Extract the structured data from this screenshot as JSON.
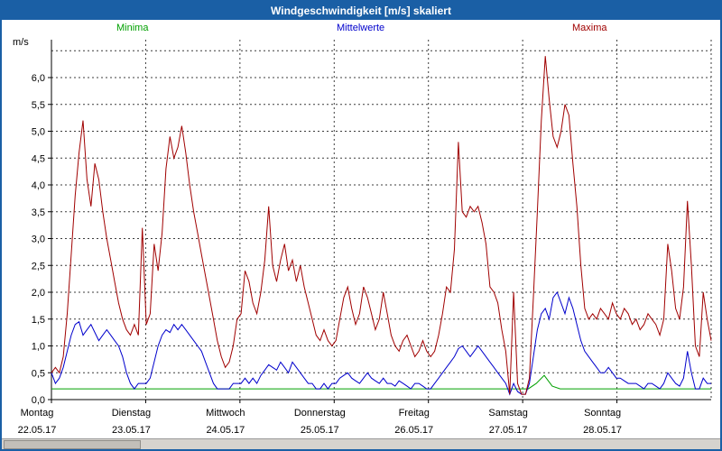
{
  "colors": {
    "titlebar": "#1a5fa5",
    "titlebar_text": "#ffffff",
    "plot_background": "#ffffff",
    "grid": "#3c3c3c"
  },
  "chart_data": {
    "type": "line",
    "title": "Windgeschwindigkeit [m/s] skaliert",
    "y_unit": "m/s",
    "ylabel": "m/s",
    "xlabel": "",
    "ylim": [
      0,
      6.75
    ],
    "y_tick_step": 0.5,
    "y_tick_format": "comma-decimal",
    "grid": "dashed",
    "legend_position": "top",
    "x_days": [
      "Montag",
      "Dienstag",
      "Mittwoch",
      "Donnerstag",
      "Freitag",
      "Samstag",
      "Sonntag"
    ],
    "x_dates": [
      "22.05.17",
      "23.05.17",
      "24.05.17",
      "25.05.17",
      "26.05.17",
      "27.05.17",
      "28.05.17"
    ],
    "series": [
      {
        "name": "Minima",
        "color": "#00a000",
        "values": [
          0.2,
          0.2,
          0.2,
          0.2,
          0.2,
          0.2,
          0.2,
          0.2,
          0.2,
          0.2,
          0.2,
          0.2,
          0.2,
          0.2,
          0.2,
          0.2,
          0.2,
          0.2,
          0.2,
          0.2,
          0.2,
          0.2,
          0.2,
          0.2,
          0.2,
          0.2,
          0.2,
          0.2,
          0.2,
          0.2,
          0.2,
          0.2,
          0.2,
          0.2,
          0.2,
          0.2,
          0.2,
          0.2,
          0.2,
          0.2,
          0.2,
          0.2,
          0.2,
          0.2,
          0.2,
          0.2,
          0.2,
          0.2,
          0.2,
          0.2,
          0.2,
          0.2,
          0.2,
          0.2,
          0.2,
          0.2,
          0.2,
          0.2,
          0.2,
          0.2,
          0.2,
          0.3,
          0.45,
          0.25,
          0.2,
          0.2,
          0.2,
          0.2,
          0.2,
          0.2,
          0.2,
          0.2,
          0.2,
          0.2,
          0.2,
          0.2,
          0.2,
          0.2,
          0.2,
          0.2,
          0.2,
          0.2,
          0.2,
          0.2
        ]
      },
      {
        "name": "Mittelwerte",
        "color": "#0000cc",
        "values": [
          0.5,
          0.3,
          0.4,
          0.6,
          0.9,
          1.2,
          1.4,
          1.45,
          1.2,
          1.3,
          1.4,
          1.25,
          1.1,
          1.2,
          1.3,
          1.2,
          1.1,
          1.0,
          0.8,
          0.5,
          0.3,
          0.2,
          0.3,
          0.3,
          0.3,
          0.4,
          0.7,
          1.0,
          1.2,
          1.3,
          1.25,
          1.4,
          1.3,
          1.4,
          1.3,
          1.2,
          1.1,
          1.0,
          0.9,
          0.7,
          0.5,
          0.3,
          0.2,
          0.2,
          0.2,
          0.2,
          0.3,
          0.3,
          0.3,
          0.4,
          0.3,
          0.4,
          0.3,
          0.45,
          0.55,
          0.65,
          0.6,
          0.55,
          0.7,
          0.6,
          0.5,
          0.7,
          0.6,
          0.5,
          0.4,
          0.3,
          0.3,
          0.2,
          0.2,
          0.3,
          0.2,
          0.3,
          0.3,
          0.4,
          0.45,
          0.5,
          0.4,
          0.35,
          0.3,
          0.4,
          0.5,
          0.4,
          0.35,
          0.3,
          0.4,
          0.3,
          0.3,
          0.25,
          0.35,
          0.3,
          0.25,
          0.2,
          0.3,
          0.3,
          0.25,
          0.2,
          0.2,
          0.3,
          0.4,
          0.5,
          0.6,
          0.7,
          0.8,
          0.95,
          1.0,
          0.9,
          0.8,
          0.9,
          1.0,
          0.9,
          0.8,
          0.7,
          0.6,
          0.5,
          0.4,
          0.3,
          0.1,
          0.3,
          0.15,
          0.1,
          0.1,
          0.3,
          0.8,
          1.3,
          1.6,
          1.7,
          1.5,
          1.9,
          2.0,
          1.8,
          1.6,
          1.9,
          1.7,
          1.4,
          1.1,
          0.9,
          0.8,
          0.7,
          0.6,
          0.5,
          0.5,
          0.6,
          0.5,
          0.4,
          0.4,
          0.35,
          0.3,
          0.3,
          0.3,
          0.25,
          0.2,
          0.3,
          0.3,
          0.25,
          0.2,
          0.3,
          0.5,
          0.4,
          0.3,
          0.25,
          0.4,
          0.9,
          0.5,
          0.2,
          0.2,
          0.4,
          0.3,
          0.3
        ]
      },
      {
        "name": "Maxima",
        "color": "#a00000",
        "values": [
          0.5,
          0.6,
          0.5,
          0.8,
          1.6,
          2.7,
          3.8,
          4.6,
          5.2,
          4.1,
          3.6,
          4.4,
          4.1,
          3.5,
          3.0,
          2.6,
          2.2,
          1.8,
          1.5,
          1.3,
          1.2,
          1.4,
          1.2,
          3.2,
          1.4,
          1.6,
          2.9,
          2.4,
          3.1,
          4.3,
          4.9,
          4.5,
          4.7,
          5.1,
          4.6,
          4.0,
          3.5,
          3.1,
          2.7,
          2.3,
          1.9,
          1.5,
          1.1,
          0.8,
          0.6,
          0.7,
          1.0,
          1.5,
          1.6,
          2.4,
          2.2,
          1.8,
          1.6,
          2.0,
          2.6,
          3.6,
          2.5,
          2.2,
          2.6,
          2.9,
          2.4,
          2.6,
          2.2,
          2.5,
          2.1,
          1.8,
          1.5,
          1.2,
          1.1,
          1.3,
          1.1,
          1.0,
          1.1,
          1.5,
          1.9,
          2.1,
          1.7,
          1.4,
          1.6,
          2.1,
          1.9,
          1.6,
          1.3,
          1.5,
          2.0,
          1.6,
          1.2,
          1.0,
          0.9,
          1.1,
          1.2,
          1.0,
          0.8,
          0.9,
          1.1,
          0.9,
          0.8,
          0.9,
          1.2,
          1.6,
          2.1,
          2.0,
          2.8,
          4.8,
          3.5,
          3.4,
          3.6,
          3.5,
          3.6,
          3.3,
          2.9,
          2.1,
          2.0,
          1.8,
          1.3,
          0.9,
          0.1,
          2.0,
          0.3,
          0.1,
          0.1,
          0.4,
          1.9,
          3.5,
          5.2,
          6.4,
          5.6,
          4.9,
          4.7,
          5.0,
          5.5,
          5.3,
          4.4,
          3.6,
          2.5,
          1.7,
          1.5,
          1.6,
          1.5,
          1.7,
          1.6,
          1.5,
          1.8,
          1.6,
          1.5,
          1.7,
          1.6,
          1.4,
          1.5,
          1.3,
          1.4,
          1.6,
          1.5,
          1.4,
          1.2,
          1.5,
          2.9,
          2.4,
          1.7,
          1.5,
          2.1,
          3.7,
          2.5,
          1.0,
          0.8,
          2.0,
          1.5,
          1.1
        ]
      }
    ]
  }
}
